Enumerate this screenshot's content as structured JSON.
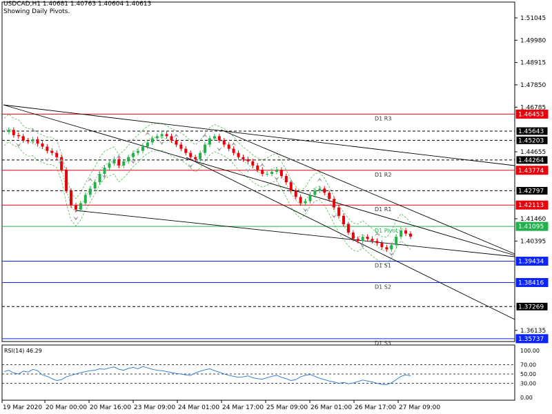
{
  "header": {
    "line1": "USDCAD,H1  1.40681 1.40763 1.40604 1.40613",
    "line2": "Showing Daily Pivots."
  },
  "chart_data": {
    "type": "line",
    "symbol": "USDCAD",
    "timeframe": "H1",
    "ohlc": {
      "open": 1.40681,
      "high": 1.40763,
      "low": 1.40604,
      "close": 1.40613
    },
    "ylim": [
      1.356,
      1.518
    ],
    "price_ticks": [
      "1.51045",
      "1.49980",
      "1.48915",
      "1.47850",
      "1.46785",
      "1.44655",
      "1.41460",
      "1.40395",
      "1.36135"
    ],
    "x_ticks": [
      "19 Mar 2020",
      "20 Mar 00:00",
      "20 Mar 16:00",
      "23 Mar 09:00",
      "24 Mar 01:00",
      "24 Mar 17:00",
      "25 Mar 09:00",
      "26 Mar 01:00",
      "26 Mar 17:00",
      "27 Mar 09:00"
    ],
    "pivot_levels": [
      {
        "label": "D1 R3",
        "value": 1.46453,
        "price_label": "1.46453",
        "style": "solid",
        "color": "#e8000b"
      },
      {
        "label": "",
        "value": 1.45643,
        "price_label": "1.45643",
        "style": "dashed",
        "color": "#000000"
      },
      {
        "label": "",
        "value": 1.45203,
        "price_label": "1.45203",
        "style": "dashed",
        "color": "#000000"
      },
      {
        "label": "",
        "value": 1.44264,
        "price_label": "1.44264",
        "style": "dashed",
        "color": "#000000"
      },
      {
        "label": "D1 R2",
        "value": 1.43774,
        "price_label": "1.43774",
        "style": "solid",
        "color": "#e8000b"
      },
      {
        "label": "",
        "value": 1.42797,
        "price_label": "1.42797",
        "style": "dashed",
        "color": "#000000"
      },
      {
        "label": "D1 R1",
        "value": 1.42113,
        "price_label": "1.42113",
        "style": "solid",
        "color": "#e8000b"
      },
      {
        "label": "D1 Pivot",
        "value": 1.41095,
        "price_label": "1.41095",
        "style": "solid",
        "color": "#22b14c"
      },
      {
        "label": "D1 S1",
        "value": 1.39434,
        "price_label": "1.39434",
        "style": "solid",
        "color": "#0b24fb"
      },
      {
        "label": "D1 S2",
        "value": 1.38416,
        "price_label": "1.38416",
        "style": "solid",
        "color": "#0b24fb"
      },
      {
        "label": "",
        "value": 1.37269,
        "price_label": "1.37269",
        "style": "dashed",
        "color": "#000000"
      },
      {
        "label": "D1 S3",
        "value": 1.35737,
        "price_label": "1.35737",
        "style": "solid",
        "color": "#0b24fb"
      }
    ],
    "close_series": [
      1.456,
      1.457,
      1.4545,
      1.454,
      1.452,
      1.4515,
      1.4525,
      1.4505,
      1.449,
      1.447,
      1.446,
      1.444,
      1.438,
      1.428,
      1.421,
      1.419,
      1.422,
      1.426,
      1.429,
      1.432,
      1.436,
      1.439,
      1.441,
      1.443,
      1.44,
      1.442,
      1.444,
      1.446,
      1.447,
      1.449,
      1.451,
      1.453,
      1.454,
      1.455,
      1.454,
      1.452,
      1.45,
      1.448,
      1.446,
      1.444,
      1.443,
      1.446,
      1.45,
      1.453,
      1.454,
      1.452,
      1.45,
      1.448,
      1.446,
      1.444,
      1.443,
      1.442,
      1.44,
      1.438,
      1.436,
      1.436,
      1.437,
      1.438,
      1.435,
      1.432,
      1.428,
      1.425,
      1.422,
      1.423,
      1.426,
      1.428,
      1.429,
      1.427,
      1.424,
      1.42,
      1.416,
      1.412,
      1.408,
      1.405,
      1.404,
      1.406,
      1.405,
      1.404,
      1.403,
      1.401,
      1.4,
      1.402,
      1.406,
      1.409,
      1.4075,
      1.4061
    ],
    "trendlines": [
      {
        "from": [
          0,
          1.466
        ],
        "to": [
          1,
          1.395
        ]
      },
      {
        "from": [
          0,
          1.466
        ],
        "to": [
          1,
          1.395
        ]
      },
      {
        "from": [
          0.14,
          1.4175
        ],
        "to": [
          1,
          1.394
        ]
      },
      {
        "from": [
          0.43,
          1.45
        ],
        "to": [
          1,
          1.365
        ]
      }
    ],
    "rsi": {
      "label": "RSI(14) 46.29",
      "value": 46.29,
      "levels": [
        "100.00",
        "70.00",
        "50.00",
        "30.00",
        "0.00"
      ],
      "ylim": [
        0,
        100
      ],
      "series": [
        55,
        58,
        52,
        50,
        56,
        54,
        60,
        57,
        48,
        45,
        40,
        36,
        38,
        44,
        47,
        50,
        53,
        55,
        57,
        58,
        61,
        60,
        63,
        65,
        60,
        58,
        62,
        64,
        61,
        66,
        63,
        60,
        58,
        57,
        55,
        53,
        51,
        50,
        48,
        47,
        52,
        56,
        59,
        61,
        57,
        54,
        50,
        47,
        45,
        43,
        44,
        46,
        42,
        40,
        39,
        42,
        45,
        47,
        43,
        40,
        36,
        38,
        44,
        47,
        49,
        45,
        41,
        38,
        35,
        33,
        30,
        32,
        29,
        31,
        34,
        37,
        35,
        33,
        30,
        28,
        27,
        31,
        38,
        45,
        48,
        46
      ]
    },
    "grid": true,
    "legend": "none"
  }
}
